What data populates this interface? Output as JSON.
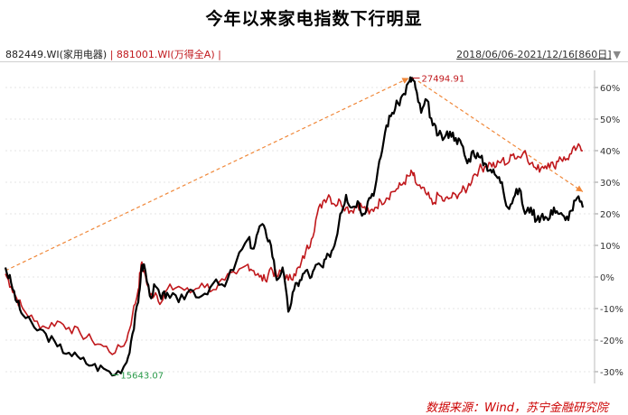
{
  "title": "今年以来家电指数下行明显",
  "legend": {
    "series1": "882449.WI(家用电器)",
    "sep1": " | ",
    "series2": "881001.WI(万得全A)",
    "sep2": " |",
    "range": "2018/06/06-2021/12/16[860日]",
    "range_icon": "▼"
  },
  "source": "数据来源：Wind，苏宁金融研究院",
  "colors": {
    "series1": "#000000",
    "series2": "#c0181c",
    "arrow": "#f0883a",
    "max_label": "#c0181c",
    "min_label": "#2a9a4a"
  },
  "chart_data": {
    "type": "line",
    "title": "今年以来家电指数下行明显",
    "x_range": [
      "2018/06/06",
      "2021/12/16"
    ],
    "y_unit": "%",
    "ylim": [
      -32,
      65
    ],
    "yticks": [
      "60%",
      "50%",
      "40%",
      "30%",
      "20%",
      "10%",
      "0%",
      "-10%",
      "-20%",
      "-30%"
    ],
    "ytick_values": [
      60,
      50,
      40,
      30,
      20,
      10,
      0,
      -10,
      -20,
      -30
    ],
    "annotations": {
      "max": "27494.91",
      "min": "15643.07"
    },
    "series": [
      {
        "name": "882449.WI(家用电器)",
        "t": [
          0,
          0.01,
          0.02,
          0.03,
          0.05,
          0.07,
          0.09,
          0.11,
          0.13,
          0.15,
          0.17,
          0.19,
          0.21,
          0.22,
          0.23,
          0.235,
          0.24,
          0.25,
          0.26,
          0.27,
          0.28,
          0.3,
          0.32,
          0.34,
          0.36,
          0.38,
          0.4,
          0.42,
          0.43,
          0.44,
          0.45,
          0.46,
          0.47,
          0.48,
          0.49,
          0.5,
          0.51,
          0.52,
          0.53,
          0.54,
          0.55,
          0.56,
          0.57,
          0.58,
          0.59,
          0.6,
          0.61,
          0.62,
          0.63,
          0.64,
          0.65,
          0.66,
          0.67,
          0.68,
          0.69,
          0.7,
          0.705,
          0.71,
          0.72,
          0.73,
          0.74,
          0.75,
          0.76,
          0.77,
          0.78,
          0.79,
          0.8,
          0.81,
          0.82,
          0.83,
          0.84,
          0.85,
          0.86,
          0.87,
          0.88,
          0.89,
          0.9,
          0.91,
          0.92,
          0.93,
          0.94,
          0.95,
          0.96,
          0.97,
          0.98,
          0.99,
          1.0
        ],
        "values": [
          3,
          -2,
          -8,
          -12,
          -16,
          -18,
          -22,
          -24,
          -26,
          -28,
          -29,
          -31,
          -27,
          -18,
          -8,
          2,
          4,
          -6,
          -3,
          -7,
          -5,
          -8,
          -4,
          -6,
          -2,
          -3,
          5,
          12,
          9,
          16,
          15,
          10,
          -1,
          3,
          -11,
          -4,
          -1,
          2,
          0,
          4,
          3,
          7,
          10,
          20,
          26,
          22,
          24,
          20,
          25,
          28,
          38,
          48,
          52,
          55,
          58,
          62,
          63,
          60,
          52,
          56,
          48,
          45,
          44,
          46,
          44,
          42,
          36,
          40,
          38,
          36,
          34,
          32,
          30,
          22,
          25,
          28,
          20,
          22,
          18,
          20,
          18,
          22,
          20,
          18,
          21,
          25,
          22
        ]
      },
      {
        "name": "881001.WI(万得全A)",
        "t": [
          0,
          0.01,
          0.02,
          0.03,
          0.05,
          0.07,
          0.09,
          0.11,
          0.13,
          0.15,
          0.17,
          0.19,
          0.21,
          0.22,
          0.23,
          0.235,
          0.24,
          0.25,
          0.26,
          0.27,
          0.28,
          0.3,
          0.32,
          0.34,
          0.36,
          0.38,
          0.4,
          0.42,
          0.43,
          0.44,
          0.45,
          0.46,
          0.47,
          0.48,
          0.49,
          0.5,
          0.51,
          0.52,
          0.53,
          0.54,
          0.55,
          0.56,
          0.57,
          0.58,
          0.59,
          0.6,
          0.61,
          0.62,
          0.63,
          0.64,
          0.65,
          0.66,
          0.67,
          0.68,
          0.69,
          0.7,
          0.705,
          0.71,
          0.72,
          0.73,
          0.74,
          0.75,
          0.76,
          0.77,
          0.78,
          0.79,
          0.8,
          0.81,
          0.82,
          0.83,
          0.84,
          0.85,
          0.86,
          0.87,
          0.88,
          0.89,
          0.9,
          0.91,
          0.92,
          0.93,
          0.94,
          0.95,
          0.96,
          0.97,
          0.98,
          0.99,
          1.0
        ],
        "values": [
          1,
          -3,
          -7,
          -10,
          -14,
          -16,
          -14,
          -16,
          -18,
          -20,
          -22,
          -24,
          -20,
          -12,
          -4,
          4,
          2,
          -6,
          -5,
          -8,
          -4,
          -3,
          -5,
          -2,
          -4,
          -1,
          1,
          4,
          2,
          0,
          -1,
          3,
          0,
          2,
          -1,
          1,
          3,
          8,
          12,
          20,
          24,
          26,
          23,
          24,
          22,
          21,
          23,
          22,
          20,
          22,
          24,
          25,
          27,
          28,
          30,
          32,
          33,
          30,
          28,
          26,
          23,
          26,
          24,
          25,
          26,
          27,
          28,
          32,
          34,
          35,
          36,
          35,
          37,
          36,
          39,
          38,
          40,
          36,
          34,
          35,
          36,
          35,
          38,
          37,
          39,
          41,
          40
        ]
      }
    ]
  }
}
